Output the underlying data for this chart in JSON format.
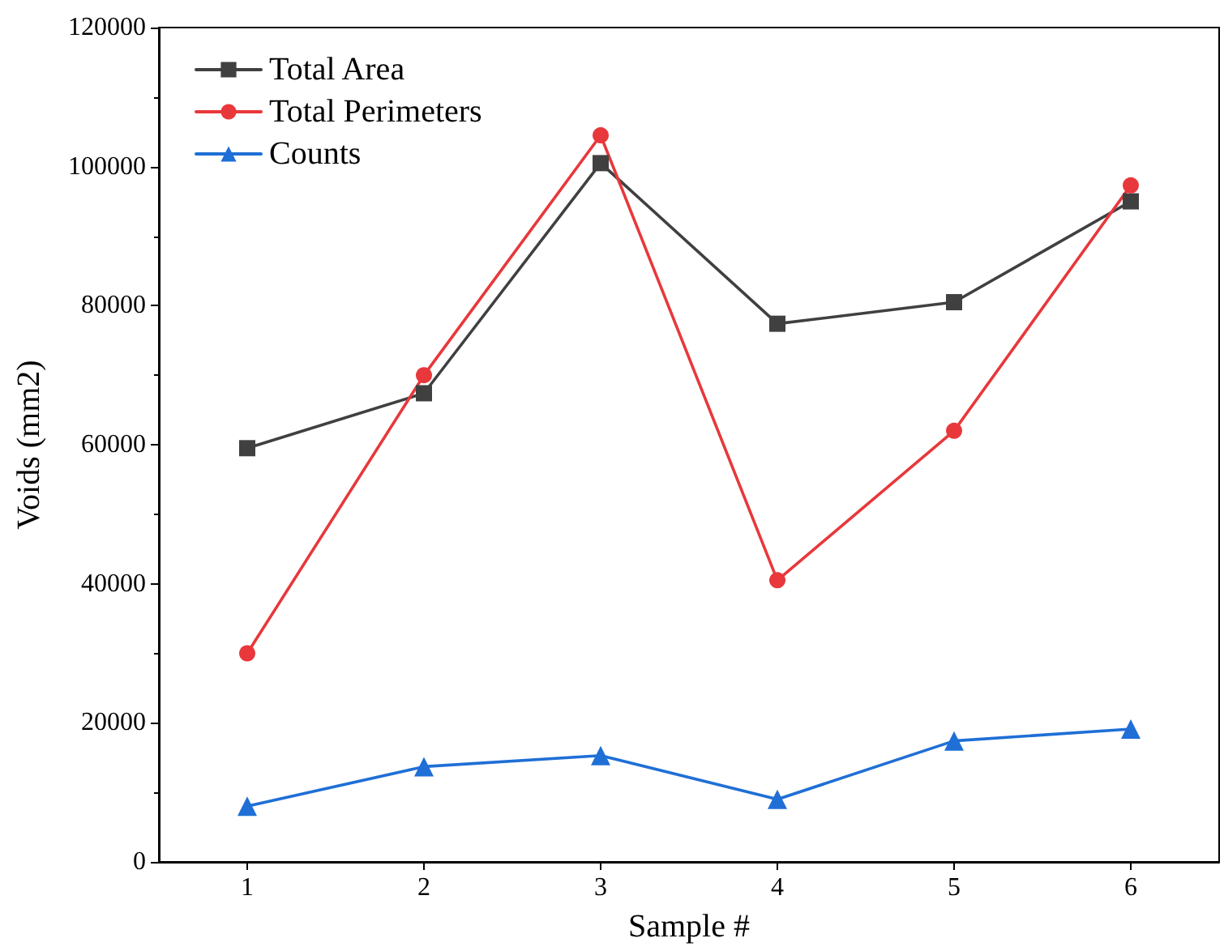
{
  "chart_data": {
    "type": "line",
    "xlabel": "Sample #",
    "ylabel": "Voids (mm2)",
    "categories": [
      "1",
      "2",
      "3",
      "4",
      "5",
      "6"
    ],
    "series": [
      {
        "name": "Total Area",
        "color": "#404040",
        "marker": "square",
        "values": [
          59500,
          67400,
          100500,
          77400,
          80500,
          95000
        ]
      },
      {
        "name": "Total Perimeters",
        "color": "#e8383b",
        "marker": "circle",
        "values": [
          30000,
          70000,
          104500,
          40500,
          62000,
          97300
        ]
      },
      {
        "name": "Counts",
        "color": "#1f6fd6",
        "marker": "triangle",
        "values": [
          8000,
          13700,
          15300,
          9000,
          17400,
          19100
        ]
      }
    ],
    "ylim": [
      0,
      120000
    ],
    "yticks": [
      0,
      20000,
      40000,
      60000,
      80000,
      100000,
      120000
    ],
    "grid": false,
    "legend": "top left",
    "line_style": "solid"
  }
}
